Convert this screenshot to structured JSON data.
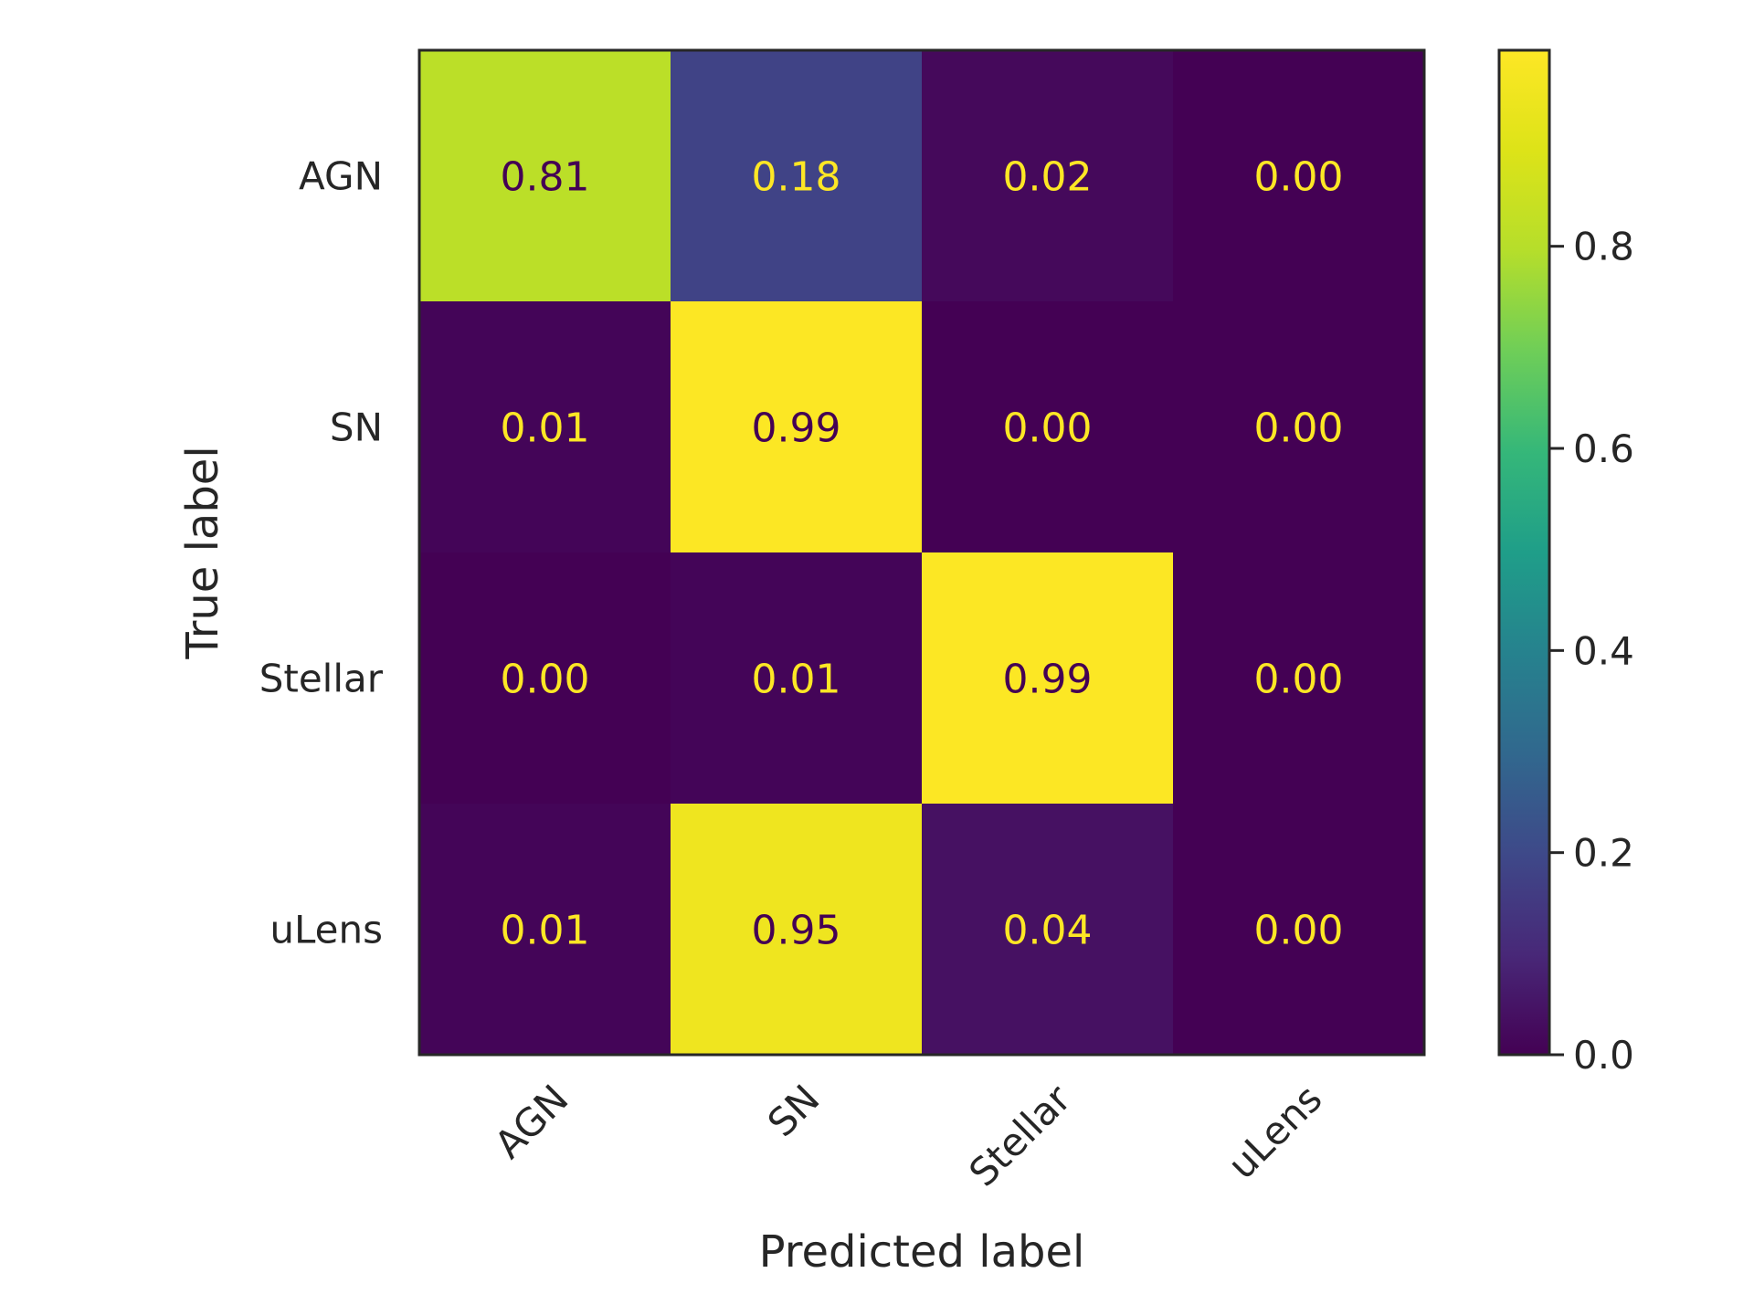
{
  "chart_data": {
    "type": "heatmap",
    "title": "",
    "xlabel": "Predicted label",
    "ylabel": "True label",
    "x_categories": [
      "AGN",
      "SN",
      "Stellar",
      "uLens"
    ],
    "y_categories": [
      "AGN",
      "SN",
      "Stellar",
      "uLens"
    ],
    "values": [
      [
        0.81,
        0.18,
        0.02,
        0.0
      ],
      [
        0.01,
        0.99,
        0.0,
        0.0
      ],
      [
        0.0,
        0.01,
        0.99,
        0.0
      ],
      [
        0.01,
        0.95,
        0.04,
        0.0
      ]
    ],
    "value_labels": [
      [
        "0.81",
        "0.18",
        "0.02",
        "0.00"
      ],
      [
        "0.01",
        "0.99",
        "0.00",
        "0.00"
      ],
      [
        "0.00",
        "0.01",
        "0.99",
        "0.00"
      ],
      [
        "0.01",
        "0.95",
        "0.04",
        "0.00"
      ]
    ],
    "colormap": "viridis",
    "color_range": [
      0,
      0.994
    ],
    "colorbar_ticks": [
      0.0,
      0.2,
      0.4,
      0.6,
      0.8
    ],
    "colorbar_tick_labels": [
      "0.0",
      "0.2",
      "0.4",
      "0.6",
      "0.8"
    ],
    "text_color_dark_cell": "#fde725",
    "text_color_light_cell": "#440154",
    "grid": false
  }
}
